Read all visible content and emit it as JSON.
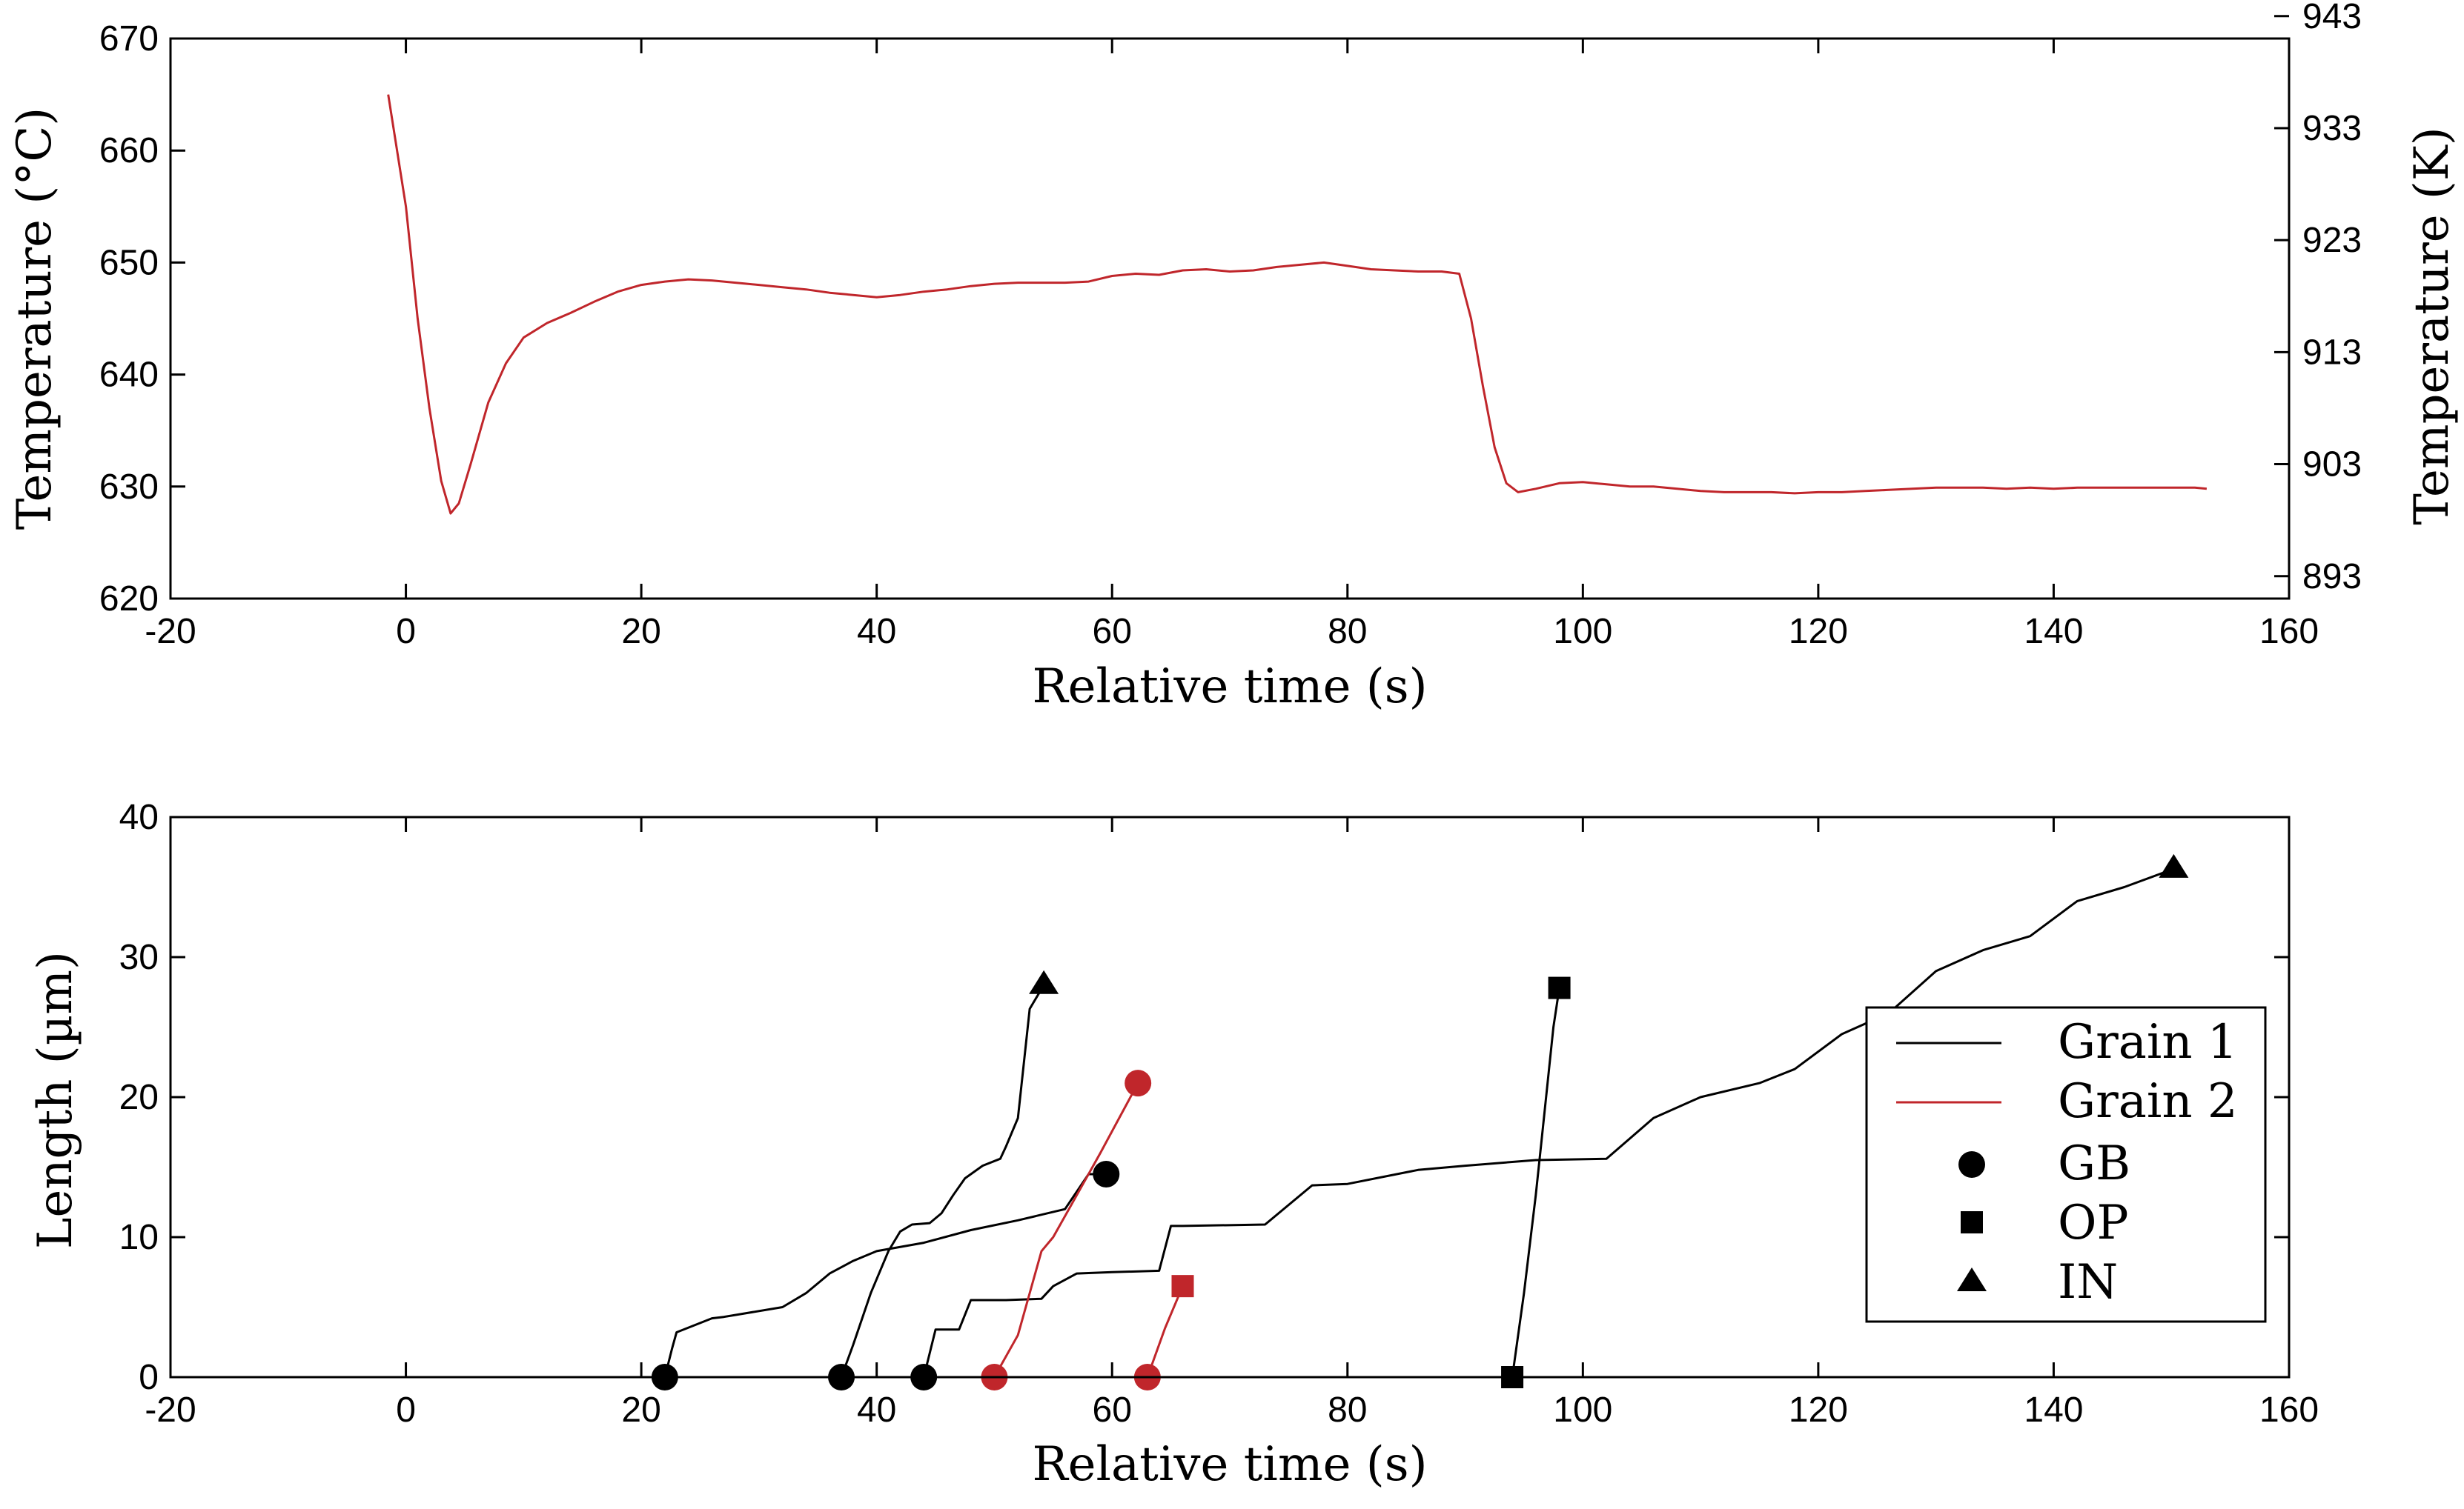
{
  "chart_data": [
    {
      "type": "line",
      "xlabel": "Relative time (s)",
      "ylabel": "Temperature (°C)",
      "y2label": "Temperature (K)",
      "xlim": [
        -20,
        160
      ],
      "ylim": [
        620,
        670
      ],
      "xticks": [
        -20,
        0,
        20,
        40,
        60,
        80,
        100,
        120,
        140,
        160
      ],
      "xtick_labels": [
        "-20",
        "0",
        "20",
        "40",
        "60",
        "80",
        "100",
        "120",
        "140",
        "160"
      ],
      "yticks": [
        620,
        630,
        640,
        650,
        660,
        670
      ],
      "ytick_labels": [
        "620",
        "630",
        "640",
        "650",
        "660",
        "670"
      ],
      "y2ticks": [
        622,
        632,
        642,
        652,
        662,
        672
      ],
      "y2tick_labels": [
        "893",
        "903",
        "913",
        "923",
        "933",
        "943"
      ],
      "series": [
        {
          "name": "Temperature",
          "color": "#c0262b",
          "x": [
            -1.5,
            0,
            1,
            2,
            3,
            3.8,
            4.5,
            5.5,
            7,
            8.5,
            10,
            12,
            14,
            16,
            18,
            20,
            22,
            24,
            26,
            28,
            30,
            32,
            34,
            36,
            38,
            40,
            42,
            44,
            46,
            48,
            50,
            52,
            54,
            56,
            58,
            60,
            62,
            64,
            66,
            68,
            70,
            72,
            74,
            76,
            78,
            80,
            82,
            84,
            86,
            88,
            89.5,
            90.5,
            91.5,
            92.5,
            93.5,
            94.5,
            96,
            98,
            100,
            102,
            104,
            106,
            108,
            110,
            112,
            114,
            116,
            118,
            120,
            122,
            124,
            126,
            128,
            130,
            132,
            134,
            136,
            138,
            140,
            142,
            144,
            146,
            148,
            150,
            152,
            153
          ],
          "values": [
            665,
            655,
            645,
            637,
            630.5,
            627.6,
            628.5,
            632,
            637.5,
            641,
            643.3,
            644.6,
            645.5,
            646.5,
            647.4,
            648,
            648.3,
            648.5,
            648.4,
            648.2,
            648.0,
            647.8,
            647.6,
            647.3,
            647.1,
            646.9,
            647.1,
            647.4,
            647.6,
            647.9,
            648.1,
            648.2,
            648.2,
            648.2,
            648.3,
            648.8,
            649.0,
            648.9,
            649.3,
            649.4,
            649.2,
            649.3,
            649.6,
            649.8,
            650.0,
            649.7,
            649.4,
            649.3,
            649.2,
            649.2,
            649.0,
            645,
            639,
            633.5,
            630.3,
            629.5,
            629.8,
            630.3,
            630.4,
            630.2,
            630.0,
            630.0,
            629.8,
            629.6,
            629.5,
            629.5,
            629.5,
            629.4,
            629.5,
            629.5,
            629.6,
            629.7,
            629.8,
            629.9,
            629.9,
            629.9,
            629.8,
            629.9,
            629.8,
            629.9,
            629.9,
            629.9,
            629.9,
            629.9,
            629.9,
            629.8
          ]
        }
      ]
    },
    {
      "type": "line",
      "xlabel": "Relative time (s)",
      "ylabel": "Length (µm)",
      "xlim": [
        -20,
        160
      ],
      "ylim": [
        0,
        40
      ],
      "xticks": [
        -20,
        0,
        20,
        40,
        60,
        80,
        100,
        120,
        140,
        160
      ],
      "xtick_labels": [
        "-20",
        "0",
        "20",
        "40",
        "60",
        "80",
        "100",
        "120",
        "140",
        "160"
      ],
      "yticks": [
        0,
        10,
        20,
        30,
        40
      ],
      "ytick_labels": [
        "0",
        "10",
        "20",
        "30",
        "40"
      ],
      "legend_position": "right",
      "legend": [
        {
          "label": "Grain 1",
          "kind": "line",
          "color": "#000000"
        },
        {
          "label": "Grain 2",
          "kind": "line",
          "color": "#c0262b"
        },
        {
          "label": "GB",
          "kind": "circle",
          "color": "#000000"
        },
        {
          "label": "OP",
          "kind": "square",
          "color": "#000000"
        },
        {
          "label": "IN",
          "kind": "triangle",
          "color": "#000000"
        }
      ],
      "series": [
        {
          "name": "Grain 1",
          "color": "#000000",
          "x": [
            22,
            22.6,
            23,
            26,
            27,
            32,
            34,
            36,
            38,
            40,
            44,
            48,
            52,
            56,
            58,
            59.5
          ],
          "values": [
            0,
            2,
            3.2,
            4.2,
            4.3,
            5,
            6,
            7.4,
            8.3,
            9,
            9.6,
            10.5,
            11.2,
            12,
            14.5,
            14.5
          ],
          "start_marker": "circle",
          "end_marker": "circle"
        },
        {
          "name": "Grain 1",
          "color": "#000000",
          "x": [
            37,
            38,
            39.5,
            41,
            42,
            43,
            44.5,
            45.5,
            46.5,
            47.5,
            49,
            50.5,
            51,
            52,
            53,
            54.2
          ],
          "values": [
            0,
            2.3,
            6,
            9,
            10.4,
            10.9,
            11,
            11.7,
            13,
            14.2,
            15.1,
            15.6,
            16.5,
            18.5,
            26.3,
            28
          ],
          "start_marker": "circle",
          "end_marker": "triangle"
        },
        {
          "name": "Grain 1",
          "color": "#000000",
          "x": [
            44,
            45,
            47,
            48,
            51,
            54,
            55,
            57,
            60,
            64,
            65,
            66,
            73,
            77,
            80,
            86,
            90,
            96,
            102,
            106,
            110,
            115,
            118,
            122,
            126,
            130,
            134,
            138,
            142,
            146,
            150.2
          ],
          "values": [
            0,
            3.4,
            3.4,
            5.5,
            5.5,
            5.6,
            6.5,
            7.4,
            7.5,
            7.6,
            10.8,
            10.8,
            10.9,
            13.7,
            13.8,
            14.8,
            15.1,
            15.5,
            15.6,
            18.5,
            20,
            21,
            22,
            24.5,
            26,
            29,
            30.5,
            31.5,
            34,
            35,
            36.3
          ],
          "start_marker": "circle",
          "end_marker": "triangle"
        },
        {
          "name": "Grain 1",
          "color": "#000000",
          "x": [
            94,
            95,
            96,
            96.5,
            97,
            97.5,
            98
          ],
          "values": [
            0,
            6,
            13,
            17,
            21,
            25,
            27.8
          ],
          "start_marker": "square",
          "end_marker": "square"
        },
        {
          "name": "Grain 2",
          "color": "#c0262b",
          "x": [
            50,
            52,
            53,
            54,
            55,
            57,
            59,
            62.2
          ],
          "values": [
            0,
            3,
            6,
            9,
            10,
            13,
            16,
            21
          ],
          "start_marker": "circle",
          "end_marker": "circle"
        },
        {
          "name": "Grain 2",
          "color": "#c0262b",
          "x": [
            63,
            64.5,
            66
          ],
          "values": [
            0,
            3.5,
            6.5
          ],
          "start_marker": "circle",
          "end_marker": "square"
        }
      ]
    }
  ]
}
